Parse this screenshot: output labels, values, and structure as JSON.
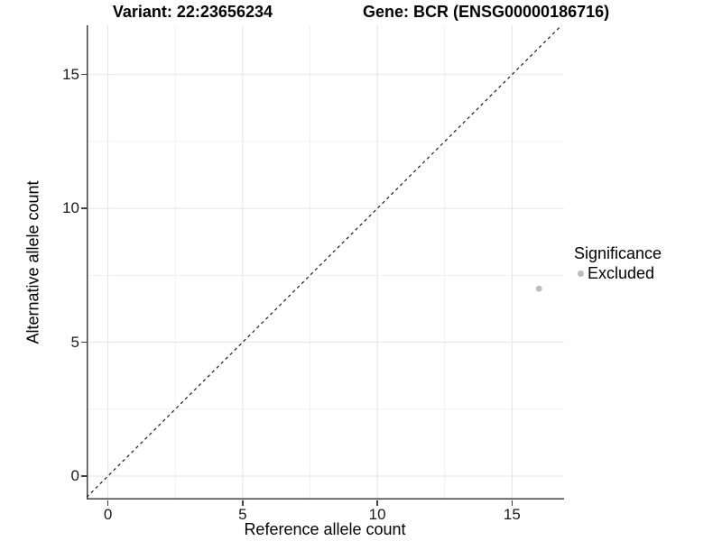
{
  "title": {
    "variant_label": "Variant: 22:23656234",
    "gene_label": "Gene: BCR (ENSG00000186716)"
  },
  "chart_data": {
    "type": "scatter",
    "title": "Variant: 22:23656234    Gene: BCR (ENSG00000186716)",
    "xlabel": "Reference allele count",
    "ylabel": "Alternative allele count",
    "xlim": [
      -0.79,
      16.93
    ],
    "ylim": [
      -0.875,
      16.84
    ],
    "x_ticks": [
      0,
      5,
      10,
      15
    ],
    "y_ticks": [
      0,
      5,
      10,
      15
    ],
    "x_minor_ticks": [
      2.5,
      7.5,
      12.5
    ],
    "y_minor_ticks": [
      2.5,
      7.5,
      12.5
    ],
    "grid": "major+minor",
    "series": [
      {
        "name": "Excluded",
        "color": "#bdbdbd",
        "points": [
          {
            "x": 16,
            "y": 7
          }
        ]
      }
    ],
    "reference_line": {
      "kind": "identity",
      "slope": 1,
      "intercept": 0,
      "style": "dashed",
      "color": "#1a1a1a"
    },
    "legend": {
      "title": "Significance",
      "position": "right",
      "entries": [
        {
          "label": "Excluded",
          "color": "#bdbdbd"
        }
      ]
    }
  },
  "colors": {
    "background": "#ffffff",
    "grid_major": "#e4e4e4",
    "grid_minor": "#f1f1f1",
    "axis_line": "#404040",
    "tick_label": "#1a1a1a",
    "point": "#bdbdbd"
  }
}
